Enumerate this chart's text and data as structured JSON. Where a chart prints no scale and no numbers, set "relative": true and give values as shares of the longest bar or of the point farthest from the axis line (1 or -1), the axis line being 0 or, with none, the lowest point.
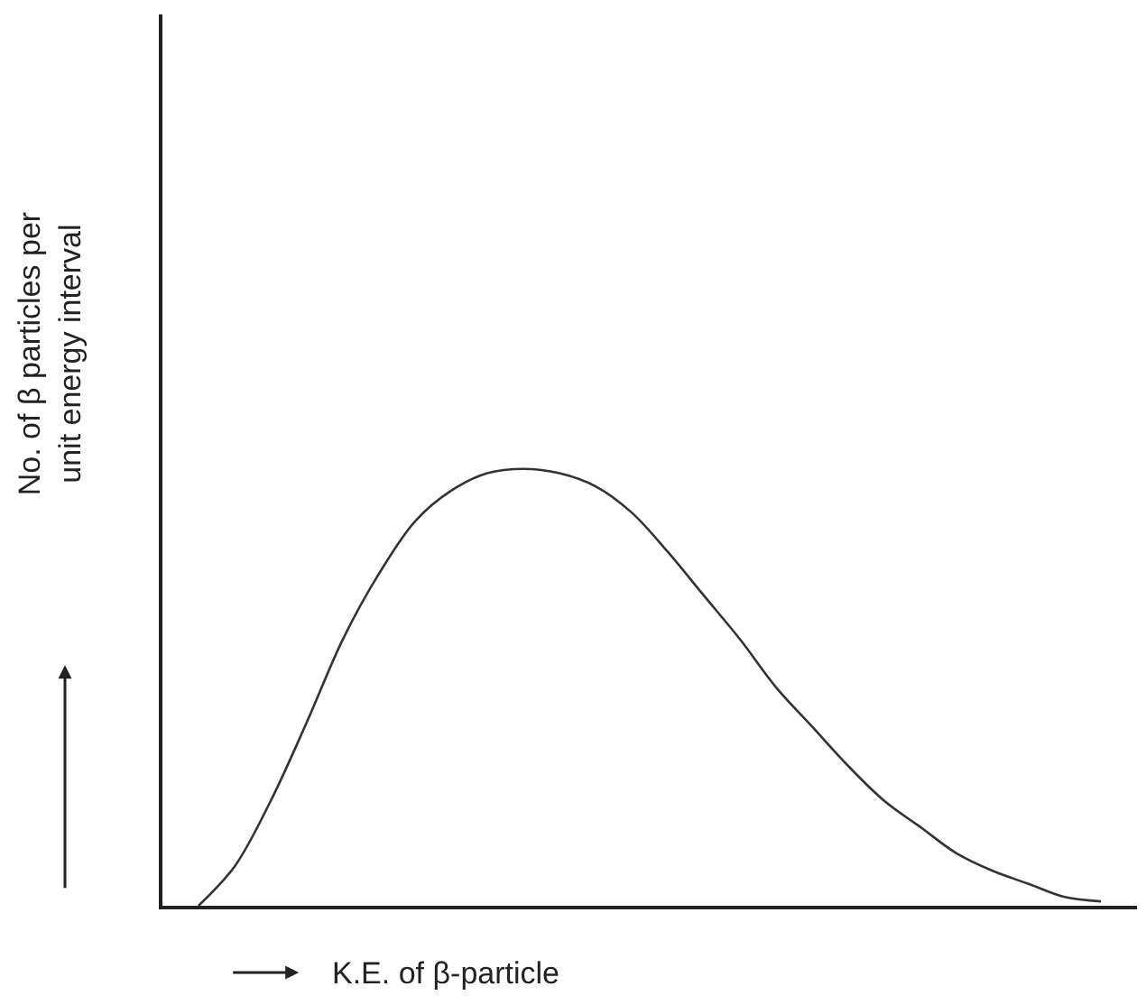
{
  "chart_data": {
    "type": "line",
    "relative": true,
    "xlabel": "K.E. of β-particle",
    "ylabel": "No. of β particles per\nunit energy interval",
    "categories": [
      null,
      null,
      null,
      null,
      null,
      null,
      null,
      null,
      null,
      null,
      null,
      null,
      null,
      null,
      null,
      null,
      null,
      null,
      null,
      null,
      null,
      null,
      null,
      null,
      null,
      null,
      null,
      null
    ],
    "series": [
      {
        "color": "#333333",
        "values": [
          null,
          0,
          0.09,
          0.24,
          0.42,
          0.61,
          0.76,
          0.88,
          0.95,
          0.99,
          1,
          0.99,
          0.96,
          0.9,
          0.81,
          0.71,
          0.61,
          0.5,
          0.41,
          0.32,
          0.24,
          0.18,
          0.12,
          0.08,
          0.05,
          0.02,
          0.01,
          null
        ]
      }
    ],
    "marker": "none",
    "line_style": "solid"
  }
}
